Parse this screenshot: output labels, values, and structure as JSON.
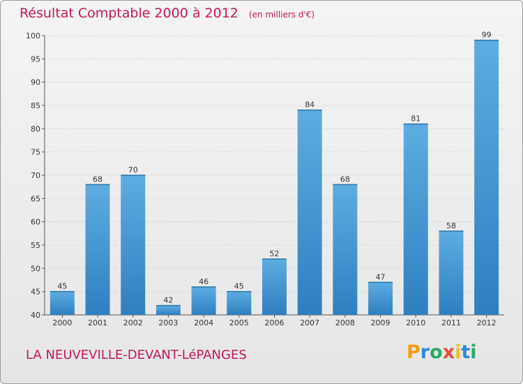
{
  "header": {
    "title": "Résultat Comptable 2000 à 2012",
    "subtitle": "(en milliers d'€)"
  },
  "footer": {
    "commune": "LA NEUVEVILLE-DEVANT-LéPANGES",
    "logo": "Proxiti",
    "logo_letters": [
      {
        "ch": "P",
        "color": "#f39c12"
      },
      {
        "ch": "r",
        "color": "#2e86de"
      },
      {
        "ch": "o",
        "color": "#27ae60"
      },
      {
        "ch": "x",
        "color": "#e74c3c"
      },
      {
        "ch": "i",
        "color": "#f1c40f"
      },
      {
        "ch": "t",
        "color": "#2e86de"
      },
      {
        "ch": "i",
        "color": "#27ae60"
      }
    ]
  },
  "colors": {
    "title": "#c2185b",
    "bar_top": "#5dade2",
    "bar_bottom": "#2e7fc0",
    "grid": "#c8c8c8"
  },
  "chart_data": {
    "type": "bar",
    "title": "Résultat Comptable 2000 à 2012",
    "unit": "(en milliers d'€)",
    "xlabel": "",
    "ylabel": "",
    "categories": [
      "2000",
      "2001",
      "2002",
      "2003",
      "2004",
      "2005",
      "2006",
      "2007",
      "2008",
      "2009",
      "2010",
      "2011",
      "2012"
    ],
    "values": [
      45,
      68,
      70,
      42,
      46,
      45,
      52,
      84,
      68,
      47,
      81,
      58,
      99
    ],
    "ylim": [
      40,
      100
    ],
    "yticks": [
      40,
      45,
      50,
      55,
      60,
      65,
      70,
      75,
      80,
      85,
      90,
      95,
      100
    ],
    "grid": true,
    "data_labels": true
  }
}
